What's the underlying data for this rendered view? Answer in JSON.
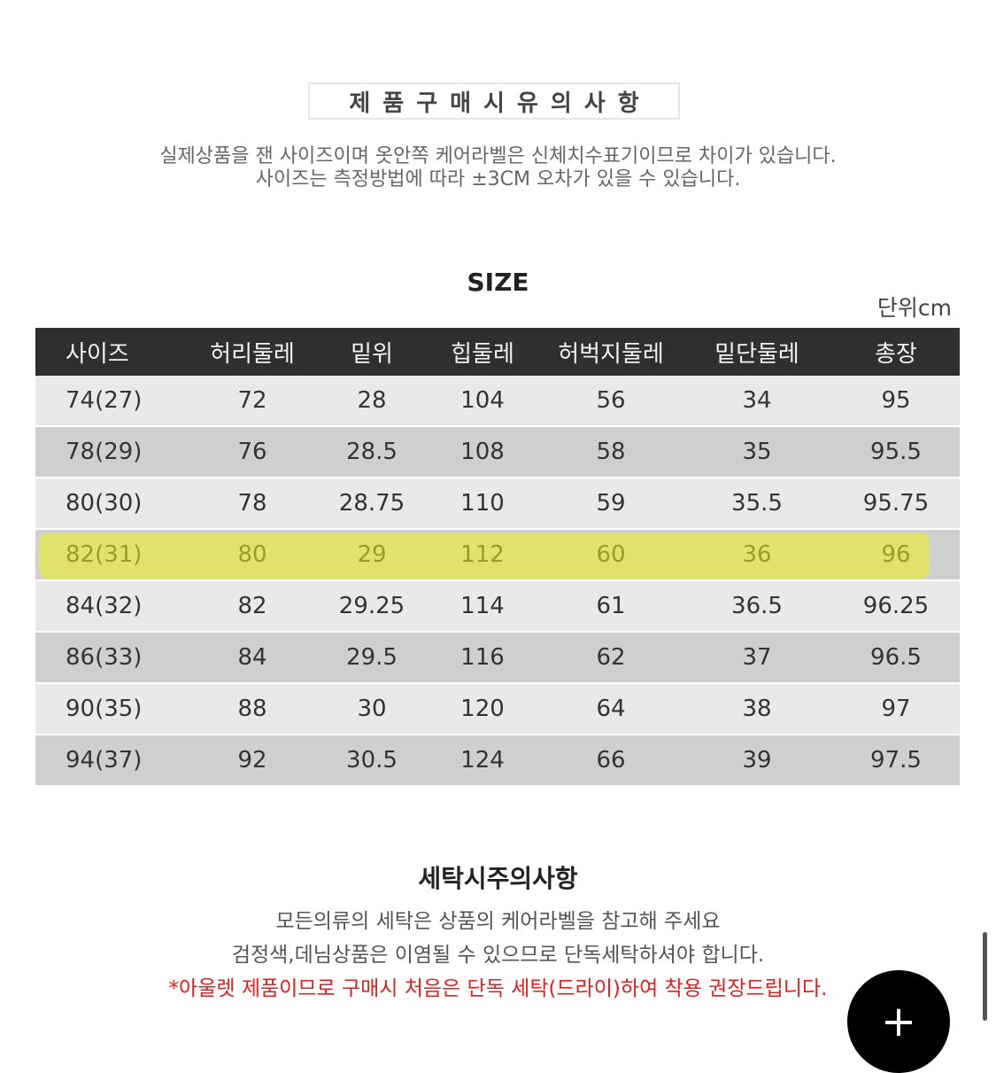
{
  "notice": {
    "title": "제품구매시유의사항",
    "line1": "실제상품을 잰 사이즈이며 옷안쪽 케어라벨은 신체치수표기이므로 차이가 있습니다.",
    "line2": "사이즈는 측정방법에 따라 ±3CM 오차가 있을 수 있습니다."
  },
  "size_chart": {
    "title": "SIZE",
    "unit": "단위cm",
    "headers": [
      "사이즈",
      "허리둘레",
      "밑위",
      "힙둘레",
      "허벅지둘레",
      "밑단둘레",
      "총장"
    ],
    "rows": [
      [
        "74(27)",
        "72",
        "28",
        "104",
        "56",
        "34",
        "95"
      ],
      [
        "78(29)",
        "76",
        "28.5",
        "108",
        "58",
        "35",
        "95.5"
      ],
      [
        "80(30)",
        "78",
        "28.75",
        "110",
        "59",
        "35.5",
        "95.75"
      ],
      [
        "82(31)",
        "80",
        "29",
        "112",
        "60",
        "36",
        "96"
      ],
      [
        "84(32)",
        "82",
        "29.25",
        "114",
        "61",
        "36.5",
        "96.25"
      ],
      [
        "86(33)",
        "84",
        "29.5",
        "116",
        "62",
        "37",
        "96.5"
      ],
      [
        "90(35)",
        "88",
        "30",
        "120",
        "64",
        "38",
        "97"
      ],
      [
        "94(37)",
        "92",
        "30.5",
        "124",
        "66",
        "39",
        "97.5"
      ]
    ],
    "highlighted_row": "82(31)"
  },
  "washing": {
    "title": "세탁시주의사항",
    "line1": "모든의류의 세탁은 상품의 케어라벨을 참고해 주세요",
    "line2": "검정색,데님상품은 이염될 수 있으므로 단독세탁하셔야 합니다.",
    "warning": "*아울렛 제품이므로 구매시 처음은 단독 세탁(드라이)하여 착용 권장드립니다."
  },
  "fab": {
    "icon": "plus-icon",
    "symbol": "+"
  },
  "colors": {
    "header_bg": "#2f2f2f",
    "row_light": "#e9e9e9",
    "row_dark": "#cfcfcf",
    "highlight": "#f0f01e",
    "warning": "#e02020"
  }
}
